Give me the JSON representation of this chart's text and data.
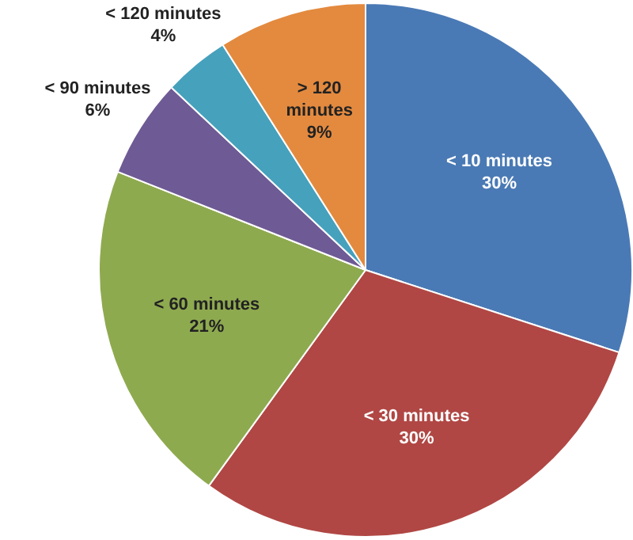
{
  "chart_data": {
    "type": "pie",
    "categories": [
      "< 10 minutes",
      "< 30 minutes",
      "< 60 minutes",
      "< 90 minutes",
      "< 120 minutes",
      "> 120 minutes"
    ],
    "values": [
      30,
      30,
      21,
      6,
      4,
      9
    ],
    "value_labels": [
      "30%",
      "30%",
      "21%",
      "6%",
      "4%",
      "9%"
    ],
    "colors": [
      "#4a7ab5",
      "#b04744",
      "#8eaa4f",
      "#6e5a94",
      "#46a1bd",
      "#e38a3f"
    ],
    "legend": false
  }
}
